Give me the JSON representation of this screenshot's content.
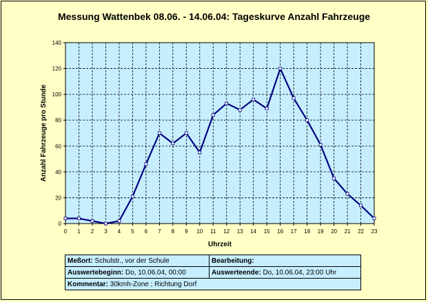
{
  "chart_data": {
    "type": "line",
    "title": "Messung Wattenbek 08.06. - 14.06.04: Tageskurve Anzahl Fahrzeuge",
    "xlabel": "Uhrzeit",
    "ylabel": "Anzahl Fahrzeuge pro Stunde",
    "x": [
      0,
      1,
      2,
      3,
      4,
      5,
      6,
      7,
      8,
      9,
      10,
      11,
      12,
      13,
      14,
      15,
      16,
      17,
      18,
      19,
      20,
      21,
      22,
      23
    ],
    "series": [
      {
        "values": [
          4,
          4,
          2,
          0,
          2,
          21,
          46,
          70,
          62,
          70,
          55,
          84,
          93,
          88,
          96,
          89,
          120,
          97,
          80,
          61,
          35,
          23,
          14,
          4
        ]
      }
    ],
    "xlim": [
      0,
      23
    ],
    "ylim": [
      0,
      140
    ],
    "y_ticks": [
      0,
      20,
      40,
      60,
      80,
      100,
      120,
      140
    ],
    "grid": true,
    "plot_bg": "#c6eeff",
    "line_color": "#00007f"
  },
  "info": {
    "messort_label": "Meßort:",
    "messort_value": "Schulstr., vor der Schule",
    "bearbeitung_label": "Bearbeitung:",
    "bearbeitung_value": "",
    "auswertebeginn_label": "Auswertebeginn:",
    "auswertebeginn_value": "Do, 10.06.04, 00:00",
    "auswerteende_label": "Auswerteende:",
    "auswerteende_value": "Do, 10.06.04, 23:00 Uhr",
    "kommentar_label": "Kommentar:",
    "kommentar_value": "30kmh-Zone ; Richtung Dorf"
  }
}
